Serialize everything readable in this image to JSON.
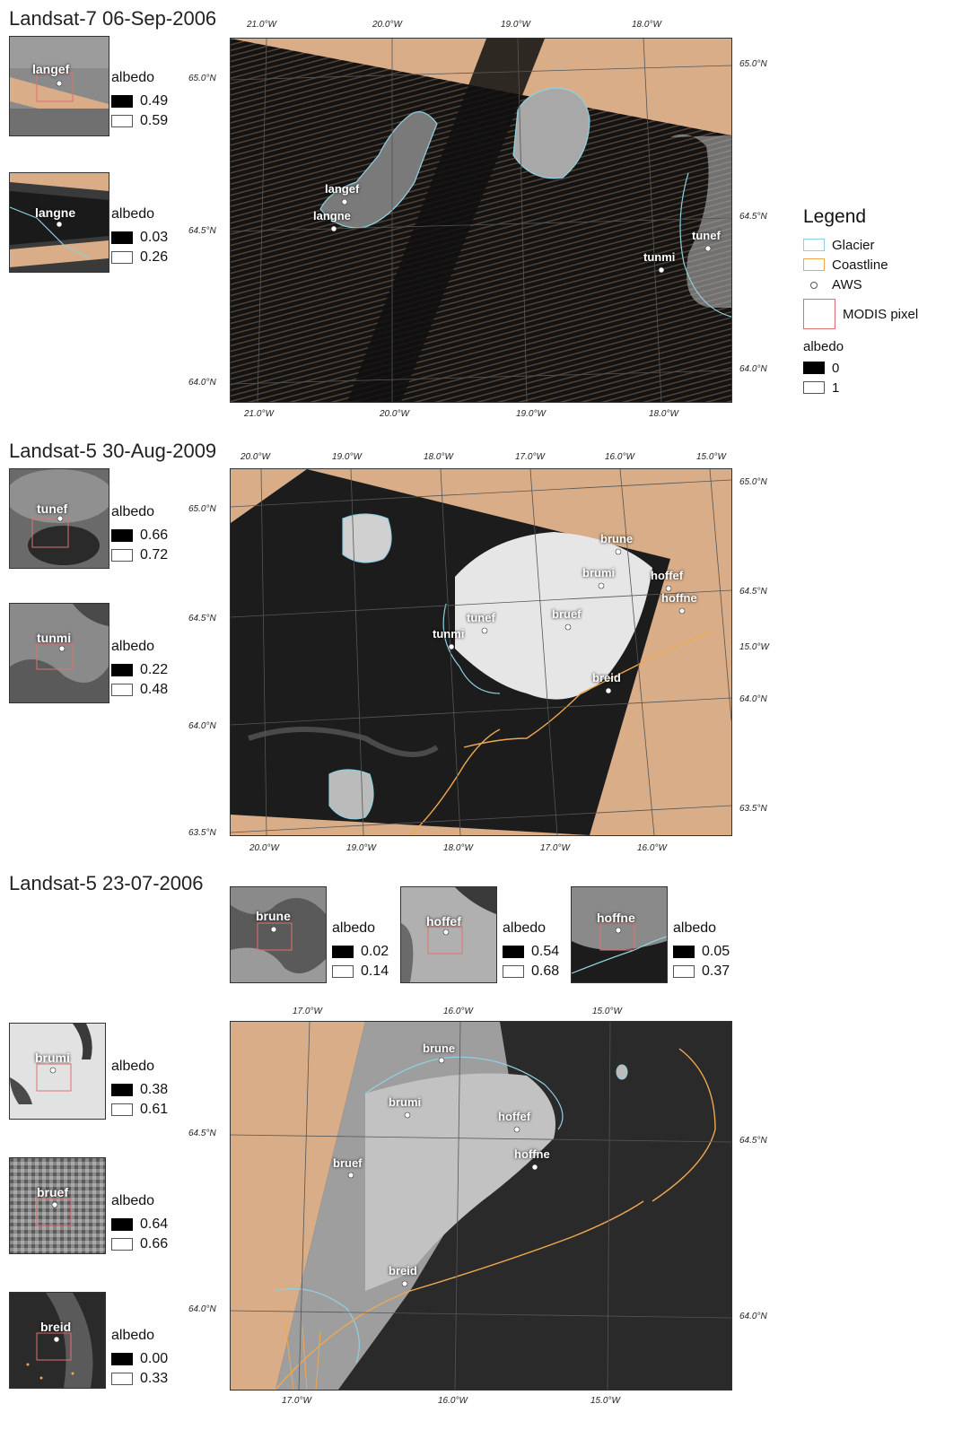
{
  "panel1": {
    "title": "Landsat-7 06-Sep-2006",
    "insets": [
      {
        "label": "langef",
        "albedo_title": "albedo",
        "min": "0.49",
        "max": "0.59"
      },
      {
        "label": "langne",
        "albedo_title": "albedo",
        "min": "0.03",
        "max": "0.26"
      }
    ],
    "map": {
      "top_lon": [
        "21.0°W",
        "20.0°W",
        "19.0°W",
        "18.0°W"
      ],
      "bottom_lon": [
        "21.0°W",
        "20.0°W",
        "19.0°W",
        "18.0°W"
      ],
      "left_lat": [
        "65.0°N",
        "64.5°N",
        "64.0°N"
      ],
      "right_lat": [
        "65.0°N",
        "64.5°N",
        "64.0°N"
      ],
      "stations": [
        "langef",
        "langne",
        "tunmi",
        "tunef"
      ]
    }
  },
  "legend": {
    "title": "Legend",
    "glacier": "Glacier",
    "coastline": "Coastline",
    "aws": "AWS",
    "modis": "MODIS pixel",
    "albedo_title": "albedo",
    "albedo_min": "0",
    "albedo_max": "1",
    "colors": {
      "glacier": "#8fd0e0",
      "coastline": "#f0a850",
      "modis": "#e07070",
      "land": "#d8ad88"
    }
  },
  "panel2": {
    "title": "Landsat-5 30-Aug-2009",
    "insets": [
      {
        "label": "tunef",
        "albedo_title": "albedo",
        "min": "0.66",
        "max": "0.72"
      },
      {
        "label": "tunmi",
        "albedo_title": "albedo",
        "min": "0.22",
        "max": "0.48"
      }
    ],
    "map": {
      "top_lon": [
        "20.0°W",
        "19.0°W",
        "18.0°W",
        "17.0°W",
        "16.0°W",
        "15.0°W"
      ],
      "bottom_lon": [
        "20.0°W",
        "19.0°W",
        "18.0°W",
        "17.0°W",
        "16.0°W"
      ],
      "left_lat": [
        "65.0°N",
        "64.5°N",
        "64.0°N",
        "63.5°N"
      ],
      "right_lat": [
        "65.0°N",
        "64.5°N",
        "15.0°W",
        "64.0°N",
        "63.5°N"
      ],
      "stations": [
        "brune",
        "brumi",
        "hoffef",
        "hoffne",
        "tunef",
        "bruef",
        "tunmi",
        "breid"
      ]
    }
  },
  "panel3": {
    "title": "Landsat-5 23-07-2006",
    "top_insets": [
      {
        "label": "brune",
        "albedo_title": "albedo",
        "min": "0.02",
        "max": "0.14"
      },
      {
        "label": "hoffef",
        "albedo_title": "albedo",
        "min": "0.54",
        "max": "0.68"
      },
      {
        "label": "hoffne",
        "albedo_title": "albedo",
        "min": "0.05",
        "max": "0.37"
      }
    ],
    "side_insets": [
      {
        "label": "brumi",
        "albedo_title": "albedo",
        "min": "0.38",
        "max": "0.61"
      },
      {
        "label": "bruef",
        "albedo_title": "albedo",
        "min": "0.64",
        "max": "0.66"
      },
      {
        "label": "breid",
        "albedo_title": "albedo",
        "min": "0.00",
        "max": "0.33"
      }
    ],
    "map": {
      "top_lon": [
        "17.0°W",
        "16.0°W",
        "15.0°W"
      ],
      "bottom_lon": [
        "17.0°W",
        "16.0°W",
        "15.0°W"
      ],
      "left_lat": [
        "64.5°N",
        "64.0°N"
      ],
      "right_lat": [
        "64.5°N",
        "64.0°N"
      ],
      "stations": [
        "brune",
        "brumi",
        "hoffef",
        "bruef",
        "hoffne",
        "breid"
      ]
    }
  }
}
